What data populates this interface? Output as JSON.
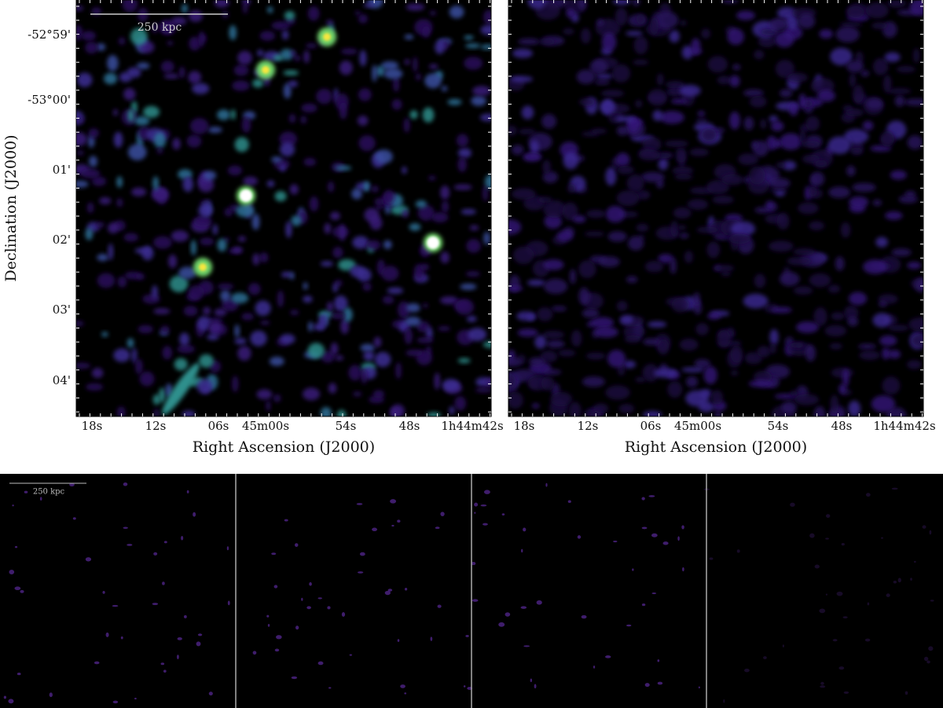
{
  "panels": [
    {
      "x_ticks": [
        "18s",
        "12s",
        "06s",
        "45m00s",
        "54s",
        "48s",
        "1h44m42s"
      ],
      "y_ticks": [
        "-52°59'",
        "-53°00'",
        "01'",
        "02'",
        "03'",
        "04'"
      ],
      "x_label": "Right Ascension (J2000)",
      "y_label": "Declination (J2000)",
      "scale_bar": "250 kpc"
    },
    {
      "x_ticks": [
        "18s",
        "12s",
        "06s",
        "45m00s",
        "54s",
        "48s",
        "1h44m42s"
      ],
      "x_label": "Right Ascension (J2000)"
    }
  ],
  "bottom_strip": {
    "scale_bar": "250 kpc"
  }
}
